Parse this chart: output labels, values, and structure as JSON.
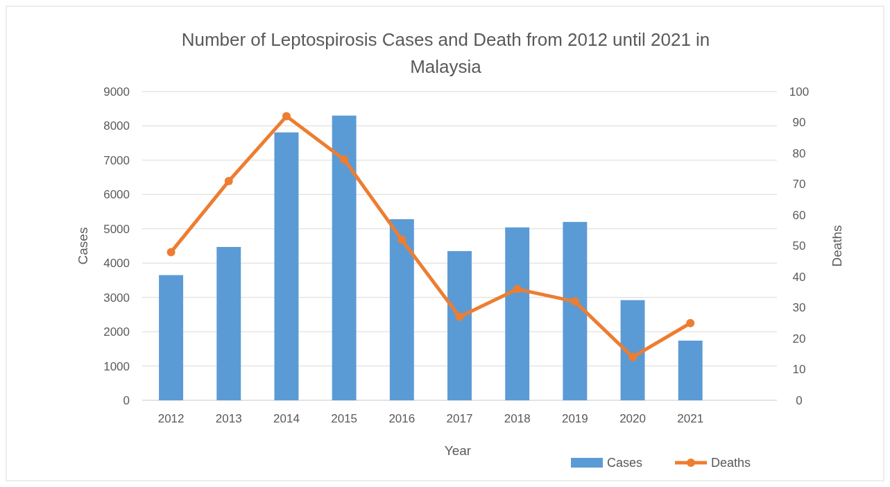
{
  "chart_data": {
    "type": "bar",
    "title": "Number of Leptospirosis Cases and Death from 2012 until 2021 in Malaysia",
    "xlabel": "Year",
    "ylabel": "Cases",
    "y2label": "Deaths",
    "categories": [
      "2012",
      "2013",
      "2014",
      "2015",
      "2016",
      "2017",
      "2018",
      "2019",
      "2020",
      "2021",
      null
    ],
    "series": [
      {
        "name": "Cases",
        "color": "#5b9bd5",
        "values": [
          3650,
          4470,
          7810,
          8300,
          5280,
          4350,
          5040,
          5200,
          2920,
          1740,
          null
        ]
      },
      {
        "name": "Deaths",
        "type": "line",
        "axis": "y2",
        "color": "#ed7d31",
        "marker": "circle",
        "values": [
          48,
          71,
          92,
          78,
          52,
          27,
          36,
          32,
          14,
          25,
          null
        ]
      }
    ],
    "ylim": [
      0,
      9000
    ],
    "yticks": [
      0,
      1000,
      2000,
      3000,
      4000,
      5000,
      6000,
      7000,
      8000,
      9000
    ],
    "y2lim": [
      0,
      100
    ],
    "y2ticks": [
      0,
      10,
      20,
      30,
      40,
      50,
      60,
      70,
      80,
      90,
      100
    ],
    "grid": "y",
    "legend": "bottom right"
  }
}
